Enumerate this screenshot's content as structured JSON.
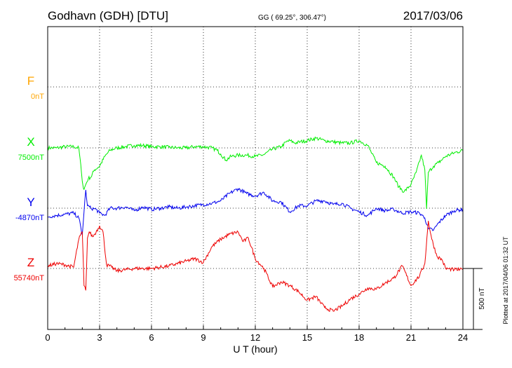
{
  "header": {
    "station": "Godhavn (GDH)  [DTU]",
    "coords": "GG ( 69.25°, 306.47°)",
    "date": "2017/03/06"
  },
  "footer_note": "Plotted at 2017/04/06 01:32 UT",
  "scale_label": "500 nT",
  "chart_data": {
    "type": "line",
    "xlabel": "U T (hour)",
    "xlim": [
      0,
      24
    ],
    "xticks": [
      "0",
      "3",
      "6",
      "9",
      "12",
      "15",
      "18",
      "21",
      "24"
    ],
    "grid": true,
    "scale_bar_nT": 500,
    "channels": [
      {
        "name": "F",
        "baseline_label": "0nT",
        "color": "#ffa500",
        "data": []
      },
      {
        "name": "X",
        "baseline_label": "7500nT",
        "color": "#00ee00",
        "x": [
          0,
          0.5,
          1,
          1.5,
          1.8,
          1.95,
          2.05,
          2.1,
          2.2,
          2.35,
          2.5,
          2.7,
          3.0,
          3.3,
          3.6,
          4.0,
          4.5,
          5.0,
          5.5,
          6.0,
          6.5,
          7.0,
          7.5,
          8.0,
          8.5,
          9.0,
          9.5,
          9.8,
          10.0,
          10.3,
          10.6,
          11.0,
          11.5,
          12.0,
          12.5,
          13.0,
          13.5,
          13.8,
          14.0,
          14.3,
          14.6,
          15.0,
          15.5,
          16.0,
          16.5,
          17.0,
          17.5,
          18.0,
          18.5,
          19.0,
          19.5,
          20.0,
          20.3,
          20.6,
          21.0,
          21.3,
          21.6,
          21.8,
          21.9,
          22.0,
          22.3,
          22.6,
          23.0,
          23.5,
          24.0
        ],
        "y": [
          0,
          0,
          10,
          10,
          0,
          -200,
          -320,
          -340,
          -300,
          -250,
          -240,
          -180,
          -150,
          -70,
          -20,
          0,
          10,
          20,
          20,
          10,
          10,
          5,
          0,
          0,
          10,
          10,
          0,
          -20,
          -50,
          -100,
          -70,
          -60,
          -60,
          -70,
          -55,
          -10,
          10,
          50,
          60,
          40,
          50,
          60,
          80,
          60,
          50,
          40,
          40,
          60,
          20,
          -120,
          -150,
          -240,
          -320,
          -360,
          -300,
          -200,
          -60,
          -180,
          -500,
          -200,
          -150,
          -120,
          -70,
          -40,
          -20
        ]
      },
      {
        "name": "Y",
        "baseline_label": "-4870nT",
        "color": "#0000ee",
        "x": [
          0,
          0.5,
          1,
          1.5,
          1.8,
          2.0,
          2.1,
          2.2,
          2.3,
          2.5,
          2.8,
          3.0,
          3.3,
          3.6,
          4.0,
          4.5,
          5.0,
          5.5,
          6.0,
          6.5,
          7.0,
          7.5,
          8.0,
          8.5,
          9.0,
          9.5,
          10.0,
          10.5,
          11.0,
          11.5,
          12.0,
          12.5,
          13.0,
          13.5,
          14.0,
          14.5,
          15.0,
          15.5,
          16.0,
          16.5,
          17.0,
          17.5,
          18.0,
          18.5,
          19.0,
          19.5,
          20.0,
          20.5,
          21.0,
          21.5,
          21.8,
          22.0,
          22.3,
          22.6,
          23.0,
          23.5,
          24.0
        ],
        "y": [
          -70,
          -60,
          -50,
          -40,
          -80,
          -220,
          -30,
          150,
          20,
          0,
          -10,
          -40,
          -60,
          0,
          0,
          10,
          -20,
          10,
          -10,
          0,
          10,
          0,
          10,
          20,
          30,
          40,
          60,
          120,
          160,
          120,
          100,
          130,
          60,
          50,
          -30,
          20,
          20,
          60,
          60,
          30,
          40,
          0,
          -30,
          -60,
          0,
          -20,
          -10,
          -40,
          -30,
          -40,
          -80,
          -170,
          -180,
          -120,
          -60,
          -20,
          -10
        ]
      },
      {
        "name": "Z",
        "baseline_label": "55740nT",
        "color": "#ee0000",
        "x": [
          0,
          0.5,
          1,
          1.5,
          1.8,
          2.0,
          2.1,
          2.2,
          2.3,
          2.4,
          2.6,
          2.8,
          3.0,
          3.2,
          3.4,
          3.7,
          4.0,
          5.0,
          6.0,
          7.0,
          8.0,
          8.5,
          9.0,
          9.5,
          10.0,
          10.5,
          11.0,
          11.3,
          11.6,
          12.0,
          12.5,
          13.0,
          13.5,
          14.0,
          14.5,
          15.0,
          15.5,
          16.0,
          16.5,
          17.0,
          17.5,
          18.0,
          18.5,
          19.0,
          19.5,
          20.0,
          20.5,
          21.0,
          21.5,
          21.8,
          22.0,
          22.2,
          22.5,
          22.8,
          23.0,
          23.5,
          24.0
        ],
        "y": [
          20,
          40,
          30,
          10,
          240,
          300,
          -140,
          -180,
          250,
          300,
          260,
          300,
          350,
          300,
          30,
          10,
          -20,
          0,
          0,
          20,
          60,
          80,
          50,
          180,
          240,
          280,
          300,
          220,
          250,
          80,
          0,
          -150,
          -110,
          -140,
          -190,
          -260,
          -230,
          -320,
          -350,
          -310,
          -250,
          -210,
          -160,
          -170,
          -120,
          -80,
          20,
          -140,
          -60,
          40,
          390,
          240,
          100,
          70,
          0,
          -10,
          -10
        ]
      }
    ]
  }
}
